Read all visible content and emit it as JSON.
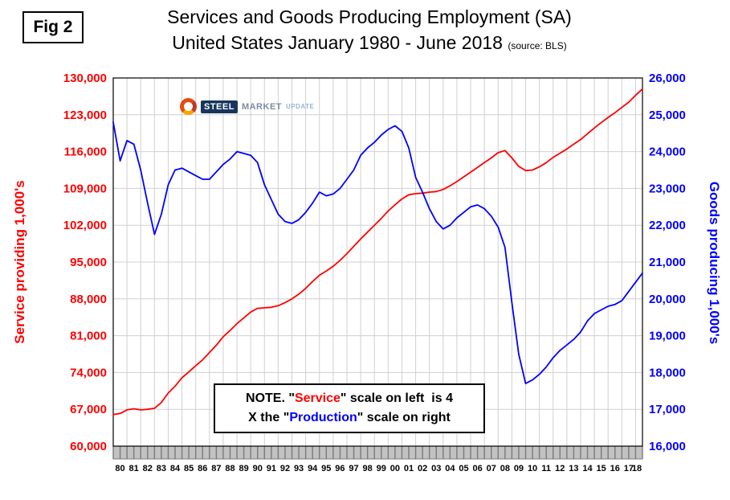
{
  "fig_label": "Fig 2",
  "header": {
    "title": "Services and Goods Producing Employment (SA)",
    "subtitle": "United States January 1980 - June 2018",
    "source": "(source: BLS)"
  },
  "logo": {
    "steel": "STEEL",
    "market": "MARKET",
    "update": "UPDATE"
  },
  "note": {
    "l1a": "NOTE. \"",
    "l1b": "Service",
    "l1c": "\" scale on left  is 4",
    "l2a": "X the \"",
    "l2b": "Production",
    "l2c": "\" scale on right"
  },
  "colors": {
    "service": "#ff0000",
    "goods": "#0000ff",
    "grid": "#d0d0d0",
    "band_fill": "#c2c2c2",
    "band_tick": "#7a7a7a",
    "border": "#000000"
  },
  "chart_data": {
    "type": "line",
    "title": "Services and Goods Producing Employment (SA), United States January 1980 - June 2018",
    "source": "BLS",
    "grid": true,
    "left_axis": {
      "label": "Service providing 1,000's",
      "min": 60000,
      "max": 130000,
      "ticks": [
        130000,
        123000,
        116000,
        109000,
        102000,
        95000,
        88000,
        81000,
        74000,
        67000,
        60000
      ]
    },
    "right_axis": {
      "label": "Goods producing 1,000's",
      "min": 16000,
      "max": 26000,
      "ticks": [
        26000,
        25000,
        24000,
        23000,
        22000,
        21000,
        20000,
        19000,
        18000,
        17000,
        16000
      ]
    },
    "x_axis": {
      "start_year": 1980,
      "end_year": 2018.5,
      "labels": [
        "80",
        "81",
        "82",
        "83",
        "84",
        "85",
        "86",
        "87",
        "88",
        "89",
        "90",
        "91",
        "92",
        "93",
        "94",
        "95",
        "96",
        "97",
        "98",
        "99",
        "00",
        "01",
        "02",
        "03",
        "04",
        "05",
        "06",
        "07",
        "08",
        "09",
        "10",
        "11",
        "12",
        "13",
        "14",
        "15",
        "16",
        "17",
        "18"
      ]
    },
    "series": [
      {
        "id": "service",
        "name": "Service providing",
        "axis": "left",
        "color": "#ff0000",
        "x_start": 1980,
        "x_step": 0.5,
        "values": [
          66000,
          66200,
          66900,
          67100,
          66900,
          67000,
          67200,
          68300,
          70100,
          71400,
          73000,
          74100,
          75300,
          76400,
          77800,
          79200,
          80800,
          82000,
          83300,
          84400,
          85500,
          86200,
          86300,
          86400,
          86700,
          87300,
          88000,
          88900,
          90000,
          91300,
          92500,
          93300,
          94200,
          95300,
          96600,
          98000,
          99400,
          100700,
          102000,
          103300,
          104700,
          105900,
          107000,
          107800,
          108000,
          108100,
          108300,
          108400,
          108800,
          109500,
          110300,
          111200,
          112100,
          113000,
          113900,
          114800,
          115800,
          116200,
          114800,
          113200,
          112400,
          112500,
          113100,
          113900,
          114900,
          115700,
          116500,
          117400,
          118300,
          119400,
          120500,
          121500,
          122500,
          123400,
          124400,
          125400,
          126700,
          127900
        ]
      },
      {
        "id": "goods",
        "name": "Goods producing",
        "axis": "right",
        "color": "#0000ff",
        "x_start": 1980,
        "x_step": 0.5,
        "values": [
          24800,
          23750,
          24300,
          24200,
          23500,
          22600,
          21750,
          22300,
          23100,
          23500,
          23550,
          23450,
          23350,
          23250,
          23250,
          23450,
          23650,
          23800,
          24000,
          23950,
          23900,
          23700,
          23100,
          22700,
          22300,
          22100,
          22050,
          22150,
          22350,
          22600,
          22900,
          22800,
          22850,
          23000,
          23250,
          23500,
          23900,
          24100,
          24250,
          24450,
          24600,
          24700,
          24550,
          24100,
          23300,
          22900,
          22450,
          22100,
          21900,
          22000,
          22200,
          22350,
          22500,
          22550,
          22450,
          22250,
          21950,
          21400,
          19900,
          18500,
          17700,
          17800,
          17950,
          18150,
          18400,
          18600,
          18750,
          18900,
          19100,
          19400,
          19600,
          19700,
          19800,
          19850,
          19950,
          20200,
          20450,
          20700
        ]
      }
    ]
  }
}
